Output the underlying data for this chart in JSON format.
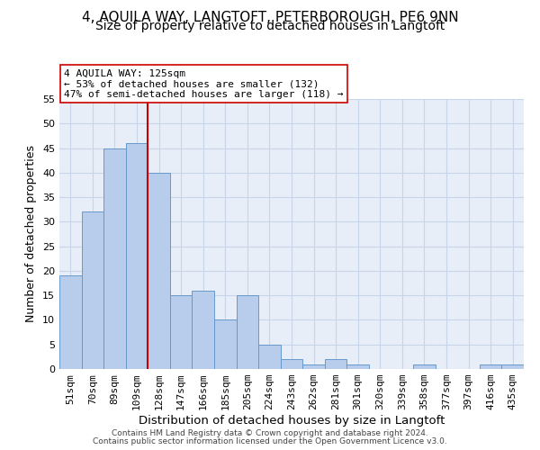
{
  "title": "4, AQUILA WAY, LANGTOFT, PETERBOROUGH, PE6 9NN",
  "subtitle": "Size of property relative to detached houses in Langtoft",
  "xlabel": "Distribution of detached houses by size in Langtoft",
  "ylabel": "Number of detached properties",
  "categories": [
    "51sqm",
    "70sqm",
    "89sqm",
    "109sqm",
    "128sqm",
    "147sqm",
    "166sqm",
    "185sqm",
    "205sqm",
    "224sqm",
    "243sqm",
    "262sqm",
    "281sqm",
    "301sqm",
    "320sqm",
    "339sqm",
    "358sqm",
    "377sqm",
    "397sqm",
    "416sqm",
    "435sqm"
  ],
  "values": [
    19,
    32,
    45,
    46,
    40,
    15,
    16,
    10,
    15,
    5,
    2,
    1,
    2,
    1,
    0,
    0,
    1,
    0,
    0,
    1,
    1
  ],
  "bar_color": "#b8cceb",
  "bar_edge_color": "#6699cc",
  "vline_x_index": 3.5,
  "vline_color": "#cc0000",
  "annotation_text": "4 AQUILA WAY: 125sqm\n← 53% of detached houses are smaller (132)\n47% of semi-detached houses are larger (118) →",
  "annotation_box_color": "#ffffff",
  "annotation_box_edge": "#cc0000",
  "ylim": [
    0,
    55
  ],
  "yticks": [
    0,
    5,
    10,
    15,
    20,
    25,
    30,
    35,
    40,
    45,
    50,
    55
  ],
  "grid_color": "#c8d4e8",
  "background_color": "#e8eef8",
  "footer_line1": "Contains HM Land Registry data © Crown copyright and database right 2024.",
  "footer_line2": "Contains public sector information licensed under the Open Government Licence v3.0.",
  "title_fontsize": 11,
  "subtitle_fontsize": 10,
  "xlabel_fontsize": 9.5,
  "ylabel_fontsize": 9,
  "annotation_fontsize": 8,
  "tick_fontsize": 8
}
